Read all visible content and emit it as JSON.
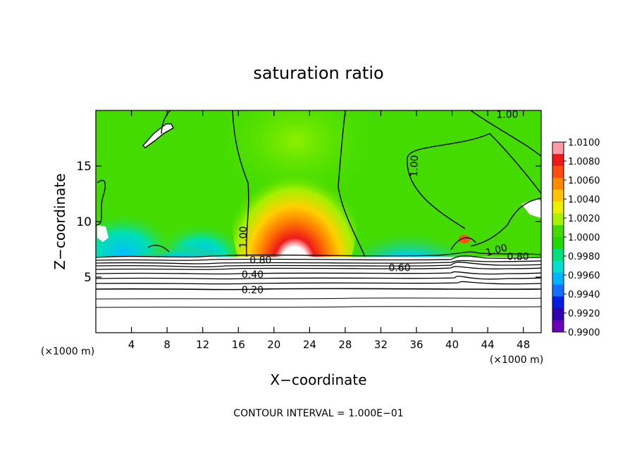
{
  "chart_data": {
    "type": "heatmap",
    "title": "saturation ratio",
    "xlabel": "X−coordinate",
    "ylabel": "Z−coordinate",
    "x_unit": "(×1000 m)",
    "y_unit": "(×1000 m)",
    "xlim": [
      0,
      50
    ],
    "ylim": [
      0,
      20
    ],
    "x_ticks": [
      4,
      8,
      12,
      16,
      20,
      24,
      28,
      32,
      36,
      40,
      44,
      48
    ],
    "y_ticks": [
      5,
      10,
      15
    ],
    "colorbar": {
      "ticks": [
        "1.0100",
        "1.0080",
        "1.0060",
        "1.0040",
        "1.0020",
        "1.0000",
        "0.9980",
        "0.9960",
        "0.9940",
        "0.9920",
        "0.9900"
      ],
      "colors": [
        "#ff9aa6",
        "#ee1a1a",
        "#ff4a10",
        "#ff8a00",
        "#ffc400",
        "#ecf000",
        "#a6f000",
        "#44dc00",
        "#22d800",
        "#00e080",
        "#00e0d0",
        "#00b4ff",
        "#1670ff",
        "#0020e0",
        "#3000b0",
        "#6a00b8"
      ],
      "position": "right"
    },
    "contour_labels": [
      {
        "text": "1.00",
        "x": 46.2,
        "z": 19.6,
        "rot": 0
      },
      {
        "text": "1.00",
        "x": 35.8,
        "z": 15.0,
        "rot": -88
      },
      {
        "text": "1.00",
        "x": 16.6,
        "z": 8.6,
        "rot": -90
      },
      {
        "text": "1.00",
        "x": 45.0,
        "z": 7.4,
        "rot": -15
      },
      {
        "text": "0.80",
        "x": 18.5,
        "z": 6.5,
        "rot": 0
      },
      {
        "text": "0.60",
        "x": 34.1,
        "z": 5.8,
        "rot": 0
      },
      {
        "text": "0.80",
        "x": 47.4,
        "z": 6.8,
        "rot": 0
      },
      {
        "text": "0.40",
        "x": 17.6,
        "z": 5.2,
        "rot": 0
      },
      {
        "text": "0.20",
        "x": 17.6,
        "z": 3.8,
        "rot": 0
      }
    ],
    "footer": "CONTOUR INTERVAL = 1.000E−01"
  }
}
